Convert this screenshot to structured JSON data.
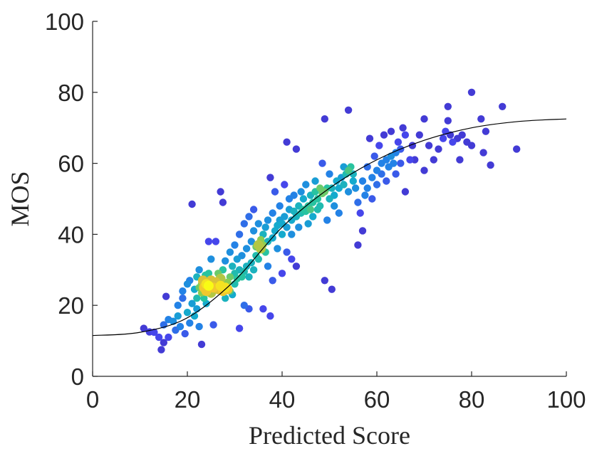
{
  "chart_data": {
    "type": "scatter",
    "title": "",
    "xlabel": "Predicted Score",
    "ylabel": "MOS",
    "xlim": [
      0,
      100
    ],
    "ylim": [
      0,
      100
    ],
    "xticks": [
      "0",
      "20",
      "40",
      "60",
      "80",
      "100"
    ],
    "yticks": [
      "0",
      "20",
      "40",
      "60",
      "80",
      "100"
    ],
    "grid": false,
    "colormap": "parula (density)",
    "colors": {
      "low_density": "#3E26A8",
      "mid_density": "#26BFB7",
      "high_density": "#F9FB15",
      "fit_line": "#000000",
      "axis": "#262626"
    },
    "fit_curve": {
      "type": "logistic",
      "points": [
        [
          0,
          11.5
        ],
        [
          10,
          12.4
        ],
        [
          20,
          16.5
        ],
        [
          30,
          27.0
        ],
        [
          40,
          42.0
        ],
        [
          50,
          53.0
        ],
        [
          60,
          61.0
        ],
        [
          70,
          66.5
        ],
        [
          80,
          70.0
        ],
        [
          90,
          71.8
        ],
        [
          100,
          72.5
        ]
      ]
    },
    "points": [
      [
        10.8,
        13.5,
        0.1
      ],
      [
        12,
        12.5,
        0.12
      ],
      [
        13,
        12.4,
        0.15
      ],
      [
        14,
        11,
        0.15
      ],
      [
        14.5,
        7.5,
        0.1
      ],
      [
        15,
        9.5,
        0.1
      ],
      [
        15,
        14.5,
        0.25
      ],
      [
        15.5,
        22.5,
        0.1
      ],
      [
        16,
        16,
        0.3
      ],
      [
        16,
        11,
        0.15
      ],
      [
        17,
        15.5,
        0.35
      ],
      [
        17.5,
        13,
        0.25
      ],
      [
        18,
        20,
        0.3
      ],
      [
        18,
        17,
        0.4
      ],
      [
        18.5,
        14,
        0.3
      ],
      [
        19,
        24,
        0.3
      ],
      [
        19,
        22,
        0.25
      ],
      [
        19.5,
        12,
        0.2
      ],
      [
        20,
        18,
        0.45
      ],
      [
        20,
        26,
        0.35
      ],
      [
        20.5,
        27,
        0.3
      ],
      [
        20.5,
        15,
        0.3
      ],
      [
        21,
        48.5,
        0.1
      ],
      [
        21,
        20.5,
        0.4
      ],
      [
        21.5,
        24.5,
        0.45
      ],
      [
        21.5,
        17,
        0.45
      ],
      [
        22,
        28,
        0.5
      ],
      [
        22,
        22,
        0.55
      ],
      [
        22,
        19,
        0.4
      ],
      [
        22.5,
        25,
        0.7
      ],
      [
        22.5,
        30,
        0.35
      ],
      [
        22.5,
        14,
        0.3
      ],
      [
        23,
        26,
        0.75
      ],
      [
        23,
        23.5,
        0.75
      ],
      [
        23,
        9,
        0.1
      ],
      [
        23.3,
        27,
        0.85
      ],
      [
        23.5,
        25,
        0.9
      ],
      [
        23.5,
        22,
        0.6
      ],
      [
        23.8,
        28.5,
        0.6
      ],
      [
        24,
        26,
        0.95
      ],
      [
        24,
        24,
        0.9
      ],
      [
        24,
        20.5,
        0.45
      ],
      [
        24.5,
        29,
        0.6
      ],
      [
        24.5,
        25.5,
        1.0
      ],
      [
        24.5,
        38,
        0.15
      ],
      [
        25,
        27,
        0.85
      ],
      [
        25,
        23.5,
        0.8
      ],
      [
        25,
        33,
        0.35
      ],
      [
        25.5,
        25,
        0.9
      ],
      [
        25.5,
        14.5,
        0.2
      ],
      [
        26,
        26.5,
        0.85
      ],
      [
        26,
        38,
        0.15
      ],
      [
        26.5,
        24.5,
        0.85
      ],
      [
        26.5,
        29,
        0.7
      ],
      [
        27,
        25.5,
        0.95
      ],
      [
        27,
        27.5,
        0.8
      ],
      [
        27,
        52,
        0.1
      ],
      [
        27.5,
        24,
        0.9
      ],
      [
        27.5,
        30,
        0.6
      ],
      [
        27.5,
        49,
        0.1
      ],
      [
        28,
        25,
        0.95
      ],
      [
        28,
        32.5,
        0.35
      ],
      [
        28,
        22,
        0.5
      ],
      [
        28.5,
        24.5,
        0.9
      ],
      [
        28.5,
        26.5,
        0.75
      ],
      [
        29,
        28,
        0.7
      ],
      [
        29,
        24,
        0.65
      ],
      [
        29,
        35,
        0.35
      ],
      [
        29.5,
        31,
        0.5
      ],
      [
        29.5,
        23,
        0.45
      ],
      [
        30,
        29,
        0.55
      ],
      [
        30,
        26,
        0.55
      ],
      [
        30,
        37,
        0.3
      ],
      [
        30.5,
        27.5,
        0.6
      ],
      [
        30.5,
        33,
        0.4
      ],
      [
        31,
        30,
        0.5
      ],
      [
        31,
        40,
        0.25
      ],
      [
        31,
        13.5,
        0.15
      ],
      [
        31.5,
        28,
        0.6
      ],
      [
        31.5,
        34,
        0.35
      ],
      [
        32,
        29.5,
        0.55
      ],
      [
        32,
        20,
        0.25
      ],
      [
        32,
        43,
        0.25
      ],
      [
        32.5,
        31,
        0.5
      ],
      [
        32.5,
        36,
        0.35
      ],
      [
        33,
        28,
        0.5
      ],
      [
        33,
        45,
        0.25
      ],
      [
        33,
        19,
        0.2
      ],
      [
        33.5,
        32,
        0.5
      ],
      [
        33.5,
        38,
        0.35
      ],
      [
        34,
        30,
        0.5
      ],
      [
        34,
        41,
        0.35
      ],
      [
        34,
        47,
        0.2
      ],
      [
        34.5,
        34,
        0.55
      ],
      [
        34.5,
        36.5,
        0.7
      ],
      [
        35,
        37,
        0.8
      ],
      [
        35,
        33,
        0.55
      ],
      [
        35,
        43,
        0.35
      ],
      [
        35.5,
        38.5,
        0.75
      ],
      [
        35.5,
        36,
        0.8
      ],
      [
        36,
        37,
        0.75
      ],
      [
        36,
        40,
        0.5
      ],
      [
        36,
        19,
        0.15
      ],
      [
        36.5,
        35,
        0.6
      ],
      [
        36.5,
        42,
        0.4
      ],
      [
        37,
        38,
        0.5
      ],
      [
        37,
        44,
        0.35
      ],
      [
        37,
        31,
        0.3
      ],
      [
        37.5,
        56,
        0.1
      ],
      [
        37.5,
        17,
        0.15
      ],
      [
        38,
        39,
        0.45
      ],
      [
        38,
        46,
        0.3
      ],
      [
        38,
        27,
        0.2
      ],
      [
        38.5,
        41,
        0.45
      ],
      [
        38.5,
        52,
        0.2
      ],
      [
        39,
        42.5,
        0.45
      ],
      [
        39,
        36,
        0.35
      ],
      [
        39.5,
        44,
        0.4
      ],
      [
        39.5,
        48,
        0.3
      ],
      [
        40,
        40,
        0.45
      ],
      [
        40,
        43,
        0.45
      ],
      [
        40,
        29,
        0.15
      ],
      [
        40.5,
        45,
        0.4
      ],
      [
        40.5,
        54,
        0.15
      ],
      [
        41,
        66,
        0.1
      ],
      [
        41,
        42,
        0.4
      ],
      [
        41,
        35,
        0.2
      ],
      [
        41.5,
        47,
        0.4
      ],
      [
        41.5,
        50,
        0.3
      ],
      [
        42,
        44,
        0.45
      ],
      [
        42,
        40,
        0.35
      ],
      [
        42,
        33,
        0.15
      ],
      [
        42.5,
        46.5,
        0.5
      ],
      [
        42.5,
        51,
        0.3
      ],
      [
        43,
        45,
        0.5
      ],
      [
        43,
        64,
        0.1
      ],
      [
        43,
        31,
        0.1
      ],
      [
        43.5,
        48,
        0.5
      ],
      [
        43.5,
        42,
        0.35
      ],
      [
        44,
        46,
        0.55
      ],
      [
        44,
        52,
        0.35
      ],
      [
        44.5,
        47,
        0.6
      ],
      [
        44.5,
        50,
        0.45
      ],
      [
        45,
        46.5,
        0.6
      ],
      [
        45,
        54,
        0.35
      ],
      [
        45.5,
        48,
        0.6
      ],
      [
        45.5,
        43,
        0.4
      ],
      [
        46,
        47,
        0.65
      ],
      [
        46,
        51,
        0.5
      ],
      [
        46.5,
        49,
        0.6
      ],
      [
        46.5,
        45,
        0.45
      ],
      [
        47,
        52,
        0.6
      ],
      [
        47,
        55,
        0.4
      ],
      [
        47.5,
        50,
        0.6
      ],
      [
        47.5,
        47,
        0.55
      ],
      [
        48,
        53,
        0.7
      ],
      [
        48,
        48,
        0.55
      ],
      [
        48.5,
        51.5,
        0.7
      ],
      [
        48.5,
        60,
        0.2
      ],
      [
        49,
        52,
        0.7
      ],
      [
        49,
        72.5,
        0.1
      ],
      [
        49,
        27,
        0.1
      ],
      [
        49.5,
        53,
        0.6
      ],
      [
        49.5,
        44,
        0.3
      ],
      [
        50,
        50,
        0.5
      ],
      [
        50,
        57,
        0.3
      ],
      [
        50.5,
        53,
        0.5
      ],
      [
        50.5,
        24.5,
        0.1
      ],
      [
        51,
        51,
        0.45
      ],
      [
        51,
        48,
        0.35
      ],
      [
        51.5,
        55,
        0.45
      ],
      [
        52,
        53,
        0.45
      ],
      [
        52,
        46,
        0.3
      ],
      [
        52.5,
        56,
        0.4
      ],
      [
        53,
        54,
        0.5
      ],
      [
        53,
        59,
        0.4
      ],
      [
        53.5,
        57,
        0.55
      ],
      [
        54,
        58,
        0.65
      ],
      [
        54,
        75,
        0.1
      ],
      [
        54,
        52,
        0.35
      ],
      [
        54.5,
        59,
        0.6
      ],
      [
        55,
        57,
        0.5
      ],
      [
        55,
        55,
        0.45
      ],
      [
        55.5,
        53,
        0.35
      ],
      [
        56,
        49,
        0.25
      ],
      [
        56,
        37,
        0.1
      ],
      [
        56.5,
        46,
        0.15
      ],
      [
        57,
        55,
        0.3
      ],
      [
        57,
        41,
        0.1
      ],
      [
        57.5,
        51,
        0.3
      ],
      [
        58,
        53,
        0.3
      ],
      [
        58,
        59,
        0.25
      ],
      [
        58.5,
        67,
        0.1
      ],
      [
        59,
        56,
        0.3
      ],
      [
        59,
        50,
        0.2
      ],
      [
        59.5,
        62,
        0.2
      ],
      [
        60,
        58,
        0.3
      ],
      [
        60,
        54,
        0.25
      ],
      [
        60.5,
        65,
        0.15
      ],
      [
        61,
        60,
        0.3
      ],
      [
        61,
        57,
        0.25
      ],
      [
        61.5,
        68,
        0.1
      ],
      [
        62,
        61,
        0.3
      ],
      [
        62,
        55,
        0.2
      ],
      [
        62.5,
        59,
        0.3
      ],
      [
        63,
        62,
        0.35
      ],
      [
        63,
        69,
        0.1
      ],
      [
        63.5,
        60,
        0.3
      ],
      [
        64,
        63,
        0.3
      ],
      [
        64,
        57,
        0.2
      ],
      [
        64.5,
        66,
        0.15
      ],
      [
        65,
        64,
        0.2
      ],
      [
        65,
        60,
        0.2
      ],
      [
        65.5,
        70,
        0.1
      ],
      [
        66,
        52,
        0.1
      ],
      [
        66,
        68,
        0.15
      ],
      [
        67,
        61,
        0.15
      ],
      [
        67.5,
        65,
        0.1
      ],
      [
        68,
        61,
        0.1
      ],
      [
        69,
        68,
        0.1
      ],
      [
        70,
        72.5,
        0.1
      ],
      [
        70,
        58,
        0.1
      ],
      [
        71,
        65,
        0.1
      ],
      [
        72,
        61,
        0.1
      ],
      [
        73,
        64,
        0.1
      ],
      [
        74,
        67,
        0.15
      ],
      [
        74.5,
        69,
        0.15
      ],
      [
        75,
        72,
        0.1
      ],
      [
        75,
        76,
        0.1
      ],
      [
        75.5,
        68,
        0.1
      ],
      [
        76,
        66,
        0.15
      ],
      [
        77,
        67,
        0.1
      ],
      [
        77.5,
        61,
        0.1
      ],
      [
        78,
        68,
        0.1
      ],
      [
        79,
        66,
        0.1
      ],
      [
        80,
        80,
        0.1
      ],
      [
        80,
        65,
        0.1
      ],
      [
        82,
        72.5,
        0.1
      ],
      [
        82.5,
        63,
        0.1
      ],
      [
        83,
        69,
        0.1
      ],
      [
        84,
        59.5,
        0.1
      ],
      [
        86.5,
        76,
        0.1
      ],
      [
        89.5,
        64,
        0.1
      ]
    ]
  }
}
